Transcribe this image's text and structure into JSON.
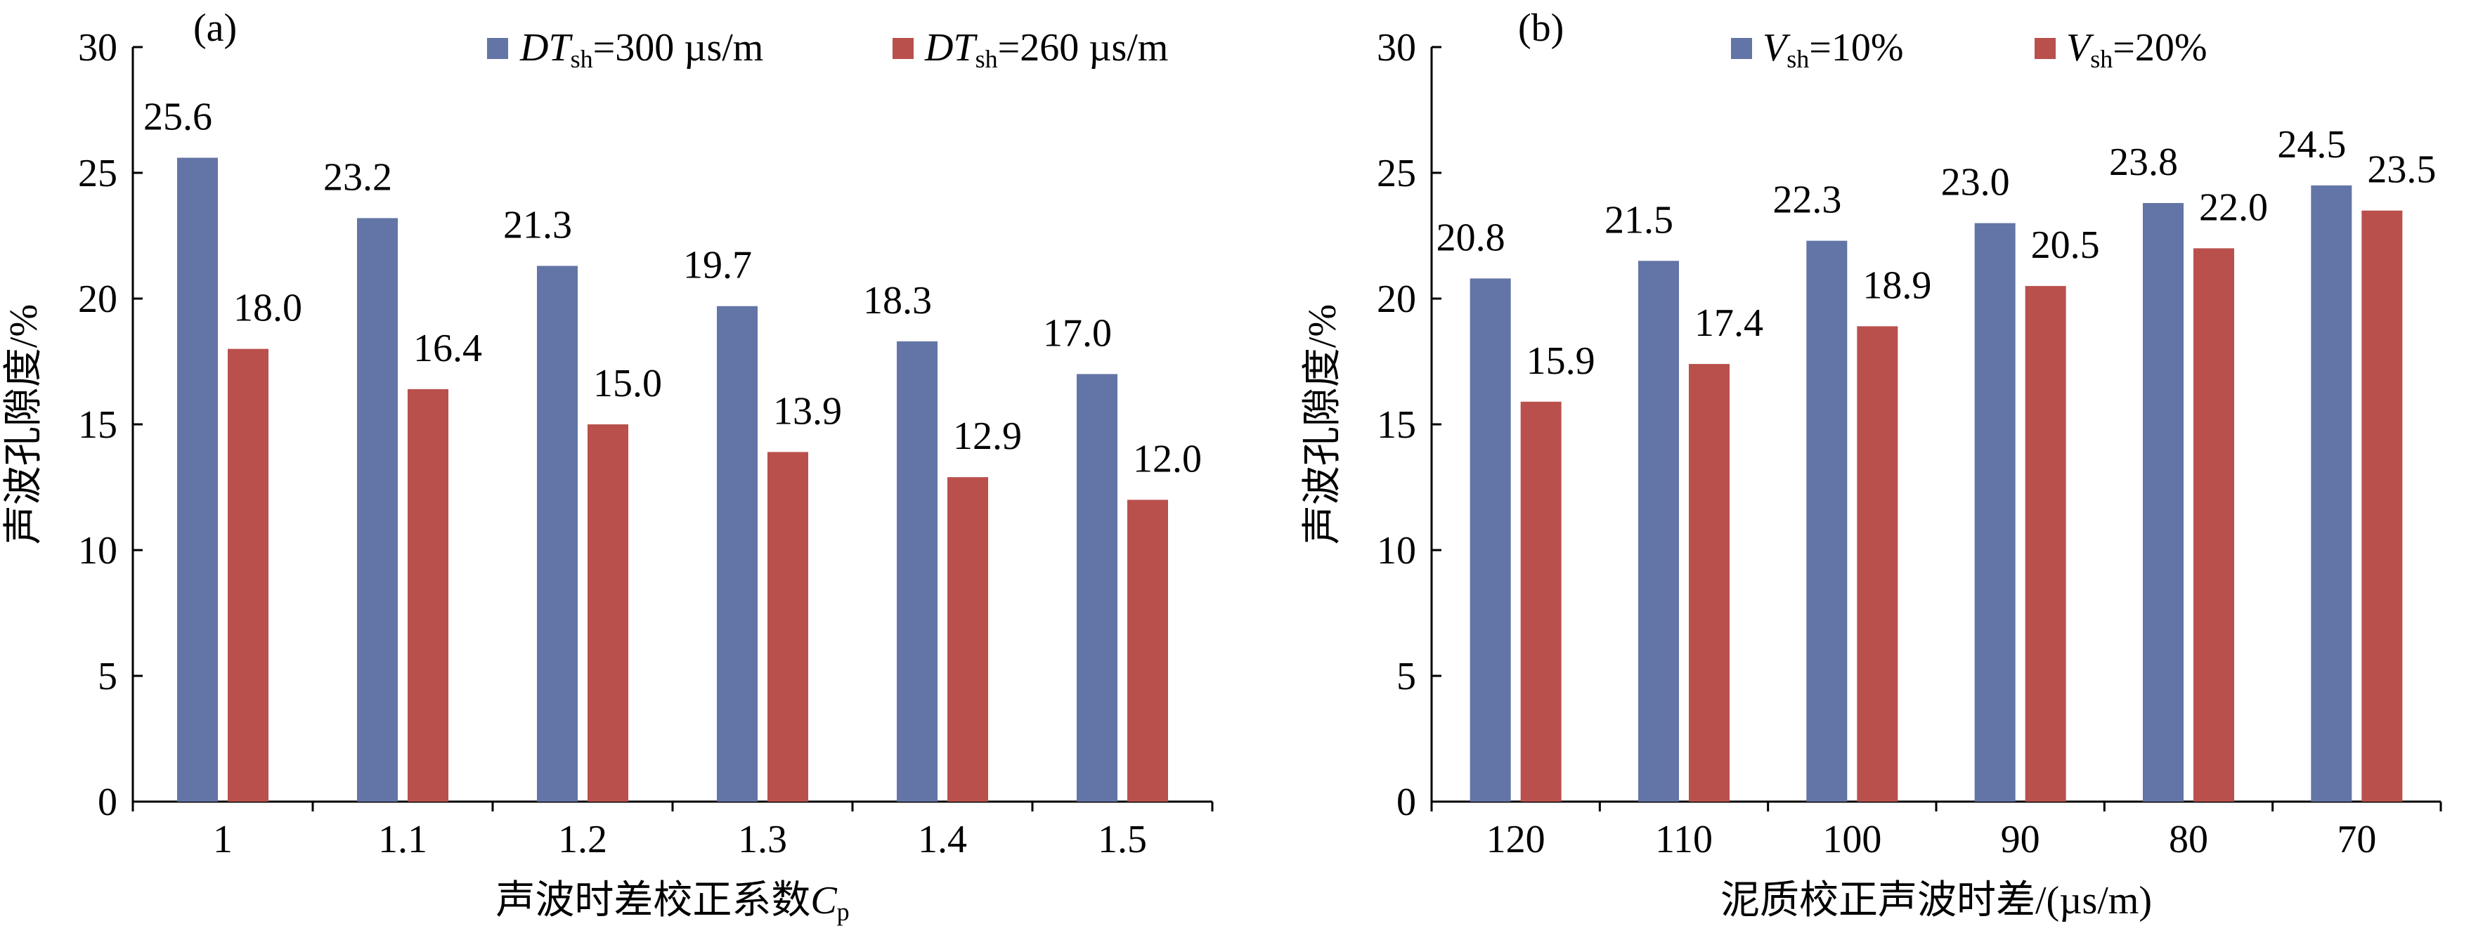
{
  "chart_data": [
    {
      "type": "bar",
      "panel_label": "(a)",
      "categories": [
        "1",
        "1.1",
        "1.2",
        "1.3",
        "1.4",
        "1.5"
      ],
      "series": [
        {
          "name": "DTsh=300 µs/m",
          "name_main": "DT",
          "name_sub": "sh",
          "name_rest": "=300 µs/m",
          "color": "#6375a6",
          "values": [
            25.6,
            23.2,
            21.3,
            19.7,
            18.3,
            17.0
          ],
          "labels": [
            "25.6",
            "23.2",
            "21.3",
            "19.7",
            "18.3",
            "17.0"
          ]
        },
        {
          "name": "DTsh=260 µs/m",
          "name_main": "DT",
          "name_sub": "sh",
          "name_rest": "=260 µs/m",
          "color": "#b9504c",
          "values": [
            18.0,
            16.4,
            15.0,
            13.9,
            12.9,
            12.0
          ],
          "labels": [
            "18.0",
            "16.4",
            "15.0",
            "13.9",
            "12.9",
            "12.0"
          ]
        }
      ],
      "ylabel": "声波孔隙度/%",
      "xlabel": "声波时差校正系数",
      "xlabel_var": "C",
      "xlabel_var_sub": "p",
      "ylim": [
        0,
        30
      ],
      "yticks": [
        "0",
        "5",
        "10",
        "15",
        "20",
        "25",
        "30"
      ],
      "grid": false,
      "legend_position": "top"
    },
    {
      "type": "bar",
      "panel_label": "(b)",
      "categories": [
        "120",
        "110",
        "100",
        "90",
        "80",
        "70"
      ],
      "series": [
        {
          "name": "Vsh=10%",
          "name_main": "V",
          "name_sub": "sh",
          "name_rest": "=10%",
          "color": "#6375a6",
          "values": [
            20.8,
            21.5,
            22.3,
            23.0,
            23.8,
            24.5
          ],
          "labels": [
            "20.8",
            "21.5",
            "22.3",
            "23.0",
            "23.8",
            "24.5"
          ]
        },
        {
          "name": "Vsh=20%",
          "name_main": "V",
          "name_sub": "sh",
          "name_rest": "=20%",
          "color": "#b9504c",
          "values": [
            15.9,
            17.4,
            18.9,
            20.5,
            22.0,
            23.5
          ],
          "labels": [
            "15.9",
            "17.4",
            "18.9",
            "20.5",
            "22.0",
            "23.5"
          ]
        }
      ],
      "ylabel": "声波孔隙度/%",
      "xlabel": "泥质校正声波时差/(µs/m)",
      "ylim": [
        0,
        30
      ],
      "yticks": [
        "0",
        "5",
        "10",
        "15",
        "20",
        "25",
        "30"
      ],
      "grid": false,
      "legend_position": "top"
    }
  ]
}
